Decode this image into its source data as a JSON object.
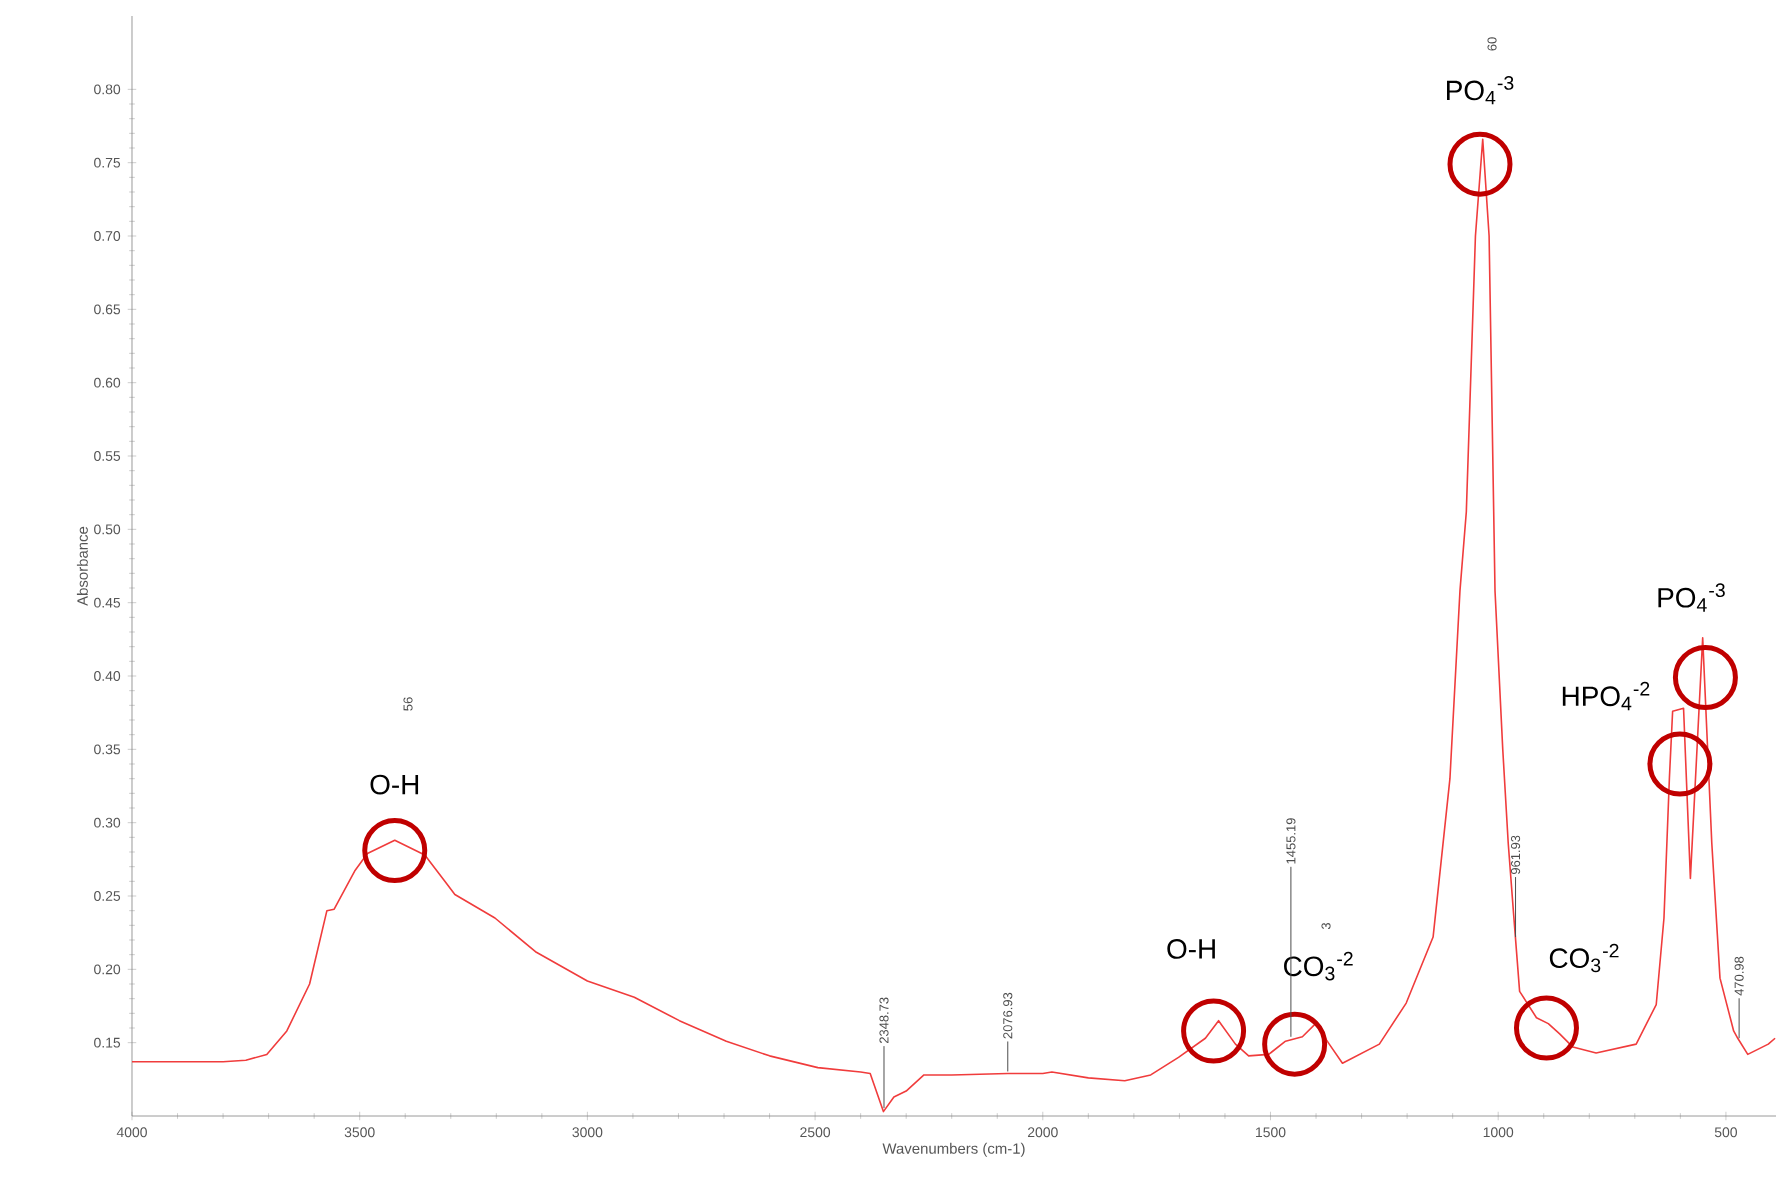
{
  "chart_data": {
    "type": "line",
    "xlabel": "Wavenumbers (cm-1)",
    "ylabel": "Absorbance",
    "x": [
      4000,
      3900,
      3800,
      3750,
      3704,
      3660,
      3610,
      3572,
      3556,
      3511,
      3483,
      3423,
      3357,
      3313,
      3291,
      3203,
      3114,
      3000,
      2897,
      2798,
      2695,
      2600,
      2494,
      2400,
      2379,
      2350,
      2327,
      2300,
      2261,
      2200,
      2077,
      2000,
      1980,
      1900,
      1820,
      1763,
      1702,
      1643,
      1614,
      1577,
      1548,
      1504,
      1467,
      1430,
      1401,
      1371,
      1342,
      1261,
      1202,
      1143,
      1106,
      1084,
      1070,
      1050,
      1034,
      1020,
      1007,
      990,
      978,
      966,
      953,
      916,
      890,
      865,
      836,
      785,
      697,
      653,
      636,
      624,
      617,
      593,
      578,
      551,
      531,
      513,
      483,
      474,
      452,
      407,
      392
    ],
    "series": [
      {
        "color": "#f03c3c",
        "values": [
          0.137,
          0.137,
          0.137,
          0.138,
          0.142,
          0.158,
          0.19,
          0.24,
          0.241,
          0.267,
          0.279,
          0.288,
          0.278,
          0.26,
          0.251,
          0.235,
          0.212,
          0.192,
          0.181,
          0.165,
          0.151,
          0.141,
          0.133,
          0.13,
          0.129,
          0.103,
          0.113,
          0.117,
          0.128,
          0.128,
          0.129,
          0.129,
          0.13,
          0.126,
          0.124,
          0.128,
          0.14,
          0.153,
          0.165,
          0.149,
          0.141,
          0.142,
          0.151,
          0.154,
          0.163,
          0.149,
          0.136,
          0.149,
          0.177,
          0.222,
          0.33,
          0.458,
          0.512,
          0.7,
          0.766,
          0.7,
          0.458,
          0.35,
          0.286,
          0.237,
          0.185,
          0.167,
          0.163,
          0.156,
          0.147,
          0.143,
          0.149,
          0.176,
          0.235,
          0.331,
          0.376,
          0.378,
          0.262,
          0.426,
          0.286,
          0.194,
          0.158,
          0.153,
          0.142,
          0.149,
          0.153
        ]
      }
    ],
    "xlim": [
      4000,
      390
    ],
    "xticks": [
      4000,
      3500,
      3000,
      2500,
      2000,
      1500,
      1000,
      500
    ],
    "ylim": [
      0.1,
      0.85
    ],
    "yticks": [
      {
        "value": 0.15,
        "label": "0.15"
      },
      {
        "value": 0.2,
        "label": "0.20"
      },
      {
        "value": 0.25,
        "label": "0.25"
      },
      {
        "value": 0.3,
        "label": "0.30"
      },
      {
        "value": 0.35,
        "label": "0.35"
      },
      {
        "value": 0.4,
        "label": "0.40"
      },
      {
        "value": 0.45,
        "label": "0.45"
      },
      {
        "value": 0.5,
        "label": "0.50"
      },
      {
        "value": 0.55,
        "label": "0.55"
      },
      {
        "value": 0.6,
        "label": "0.60"
      },
      {
        "value": 0.65,
        "label": "0.65"
      },
      {
        "value": 0.7,
        "label": "0.70"
      },
      {
        "value": 0.75,
        "label": "0.75"
      },
      {
        "value": 0.8,
        "label": "0.80"
      }
    ],
    "annotations": [
      {
        "text": "O-H",
        "x": 3423,
        "y": 0.281
      },
      {
        "text": "PO$_{4}$$^{-3}$",
        "x": 1040,
        "y": 0.749
      },
      {
        "text": "O-H",
        "x": 1625,
        "y": 0.158
      },
      {
        "text": "CO$_{3}$$^{-2}$",
        "x": 1447,
        "y": 0.149
      },
      {
        "text": "CO$_{3}$$^{-2}$",
        "x": 894,
        "y": 0.16
      },
      {
        "text": "HPO$_{4}$$^{-2}$",
        "x": 601,
        "y": 0.34
      },
      {
        "text": "PO$_{4}$$^{-3}$",
        "x": 545,
        "y": 0.399
      },
      {
        "text": "2348.73",
        "x": 2348.73,
        "y": 0.104
      },
      {
        "text": "2076.93",
        "x": 2076.93,
        "y": 0.129
      },
      {
        "text": "1455.19",
        "x": 1455.19,
        "y": 0.154
      },
      {
        "text": "961.93",
        "x": 961.93,
        "y": 0.222
      },
      {
        "text": "470.98",
        "x": 470.98,
        "y": 0.153
      },
      "56",
      "60",
      "3"
    ]
  }
}
